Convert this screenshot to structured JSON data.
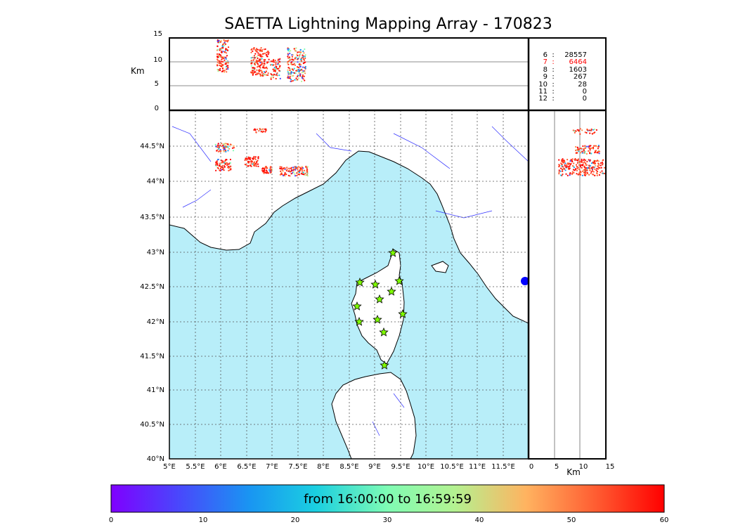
{
  "title": "SAETTA Lightning Mapping Array - 170823",
  "altitude_panel": {
    "ylabel": "Km",
    "yticks": [
      "15",
      "10",
      "5",
      "0"
    ]
  },
  "side_panel": {
    "xlabel": "Km",
    "xticks": [
      "0",
      "5",
      "10",
      "15"
    ]
  },
  "map": {
    "lon_ticks": [
      "5°E",
      "5.5°E",
      "6°E",
      "6.5°E",
      "7°E",
      "7.5°E",
      "8°E",
      "8.5°E",
      "9°E",
      "9.5°E",
      "10°E",
      "10.5°E",
      "11°E",
      "11.5°E"
    ],
    "lat_ticks": [
      "44.5°N",
      "44°N",
      "43.5°N",
      "43°N",
      "42.5°N",
      "42°N",
      "41.5°N",
      "41°N",
      "40.5°N",
      "40°N"
    ],
    "sea_color": "#b8eef9",
    "station_color": "#7fff00"
  },
  "stats": [
    {
      "n": "6",
      "v": "28557",
      "color": "#000000"
    },
    {
      "n": "7",
      "v": "6464",
      "color": "#ff0000"
    },
    {
      "n": "8",
      "v": "1603",
      "color": "#000000"
    },
    {
      "n": "9",
      "v": "267",
      "color": "#000000"
    },
    {
      "n": "10",
      "v": "28",
      "color": "#000000"
    },
    {
      "n": "11",
      "v": "0",
      "color": "#000000"
    },
    {
      "n": "12",
      "v": "0",
      "color": "#000000"
    }
  ],
  "colorbar": {
    "caption": "from 16:00:00 to 16:59:59",
    "ticks": [
      "0",
      "10",
      "20",
      "30",
      "40",
      "50",
      "60"
    ]
  }
}
